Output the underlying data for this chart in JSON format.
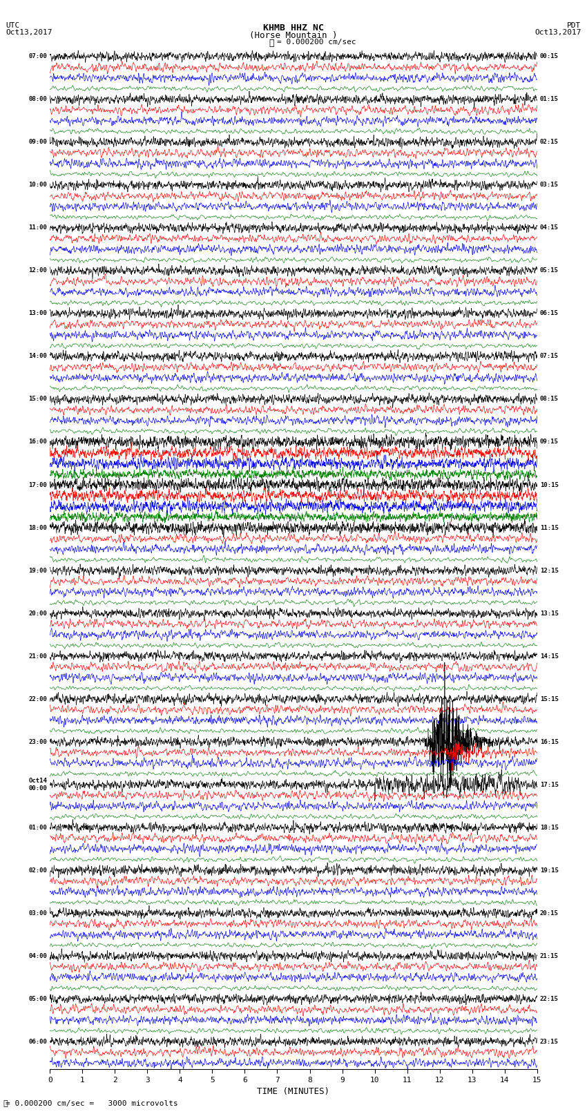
{
  "title_line1": "KHMB HHZ NC",
  "title_line2": "(Horse Mountain )",
  "scale_label": "= 0.000200 cm/sec",
  "bottom_label": "= 0.000200 cm/sec =   3000 microvolts",
  "utc_label": "UTC\nOct13,2017",
  "pdt_label": "PDT\nOct13,2017",
  "xlabel": "TIME (MINUTES)",
  "xticks": [
    0,
    1,
    2,
    3,
    4,
    5,
    6,
    7,
    8,
    9,
    10,
    11,
    12,
    13,
    14,
    15
  ],
  "trace_colors": [
    "black",
    "red",
    "blue",
    "green"
  ],
  "background_color": "white",
  "left_times_utc": [
    "07:00",
    "",
    "",
    "",
    "08:00",
    "",
    "",
    "",
    "09:00",
    "",
    "",
    "",
    "10:00",
    "",
    "",
    "",
    "11:00",
    "",
    "",
    "",
    "12:00",
    "",
    "",
    "",
    "13:00",
    "",
    "",
    "",
    "14:00",
    "",
    "",
    "",
    "15:00",
    "",
    "",
    "",
    "16:00",
    "",
    "",
    "",
    "17:00",
    "",
    "",
    "",
    "18:00",
    "",
    "",
    "",
    "19:00",
    "",
    "",
    "",
    "20:00",
    "",
    "",
    "",
    "21:00",
    "",
    "",
    "",
    "22:00",
    "",
    "",
    "",
    "23:00",
    "",
    "",
    "",
    "Oct14\n00:00",
    "",
    "",
    "",
    "01:00",
    "",
    "",
    "",
    "02:00",
    "",
    "",
    "",
    "03:00",
    "",
    "",
    "",
    "04:00",
    "",
    "",
    "",
    "05:00",
    "",
    "",
    "",
    "06:00",
    "",
    ""
  ],
  "right_times_pdt": [
    "00:15",
    "",
    "",
    "",
    "01:15",
    "",
    "",
    "",
    "02:15",
    "",
    "",
    "",
    "03:15",
    "",
    "",
    "",
    "04:15",
    "",
    "",
    "",
    "05:15",
    "",
    "",
    "",
    "06:15",
    "",
    "",
    "",
    "07:15",
    "",
    "",
    "",
    "08:15",
    "",
    "",
    "",
    "09:15",
    "",
    "",
    "",
    "10:15",
    "",
    "",
    "",
    "11:15",
    "",
    "",
    "",
    "12:15",
    "",
    "",
    "",
    "13:15",
    "",
    "",
    "",
    "14:15",
    "",
    "",
    "",
    "15:15",
    "",
    "",
    "",
    "16:15",
    "",
    "",
    "",
    "17:15",
    "",
    "",
    "",
    "18:15",
    "",
    "",
    "",
    "19:15",
    "",
    "",
    "",
    "20:15",
    "",
    "",
    "",
    "21:15",
    "",
    "",
    "",
    "22:15",
    "",
    "",
    "",
    "23:15",
    "",
    ""
  ],
  "seed": 42,
  "fig_width": 8.5,
  "fig_height": 16.13,
  "dpi": 100
}
